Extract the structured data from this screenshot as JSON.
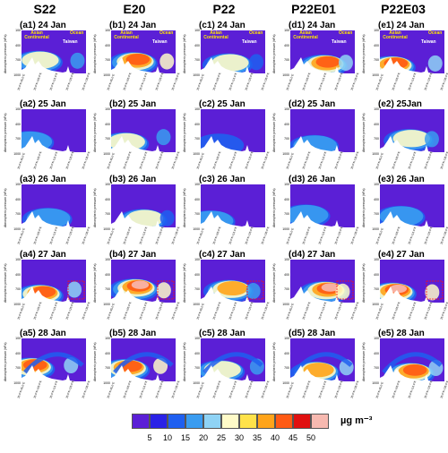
{
  "chart_data": {
    "type": "heatmap",
    "columns": [
      "S22",
      "E20",
      "P22",
      "P22E01",
      "P22E03"
    ],
    "column_letters": [
      "a",
      "b",
      "c",
      "d",
      "e"
    ],
    "rows": [
      {
        "index": 1,
        "date": "24 Jan"
      },
      {
        "index": 2,
        "date": "25 Jan"
      },
      {
        "index": 3,
        "date": "26 Jan"
      },
      {
        "index": 4,
        "date": "27 Jan"
      },
      {
        "index": 5,
        "date": "28 Jan"
      }
    ],
    "panel_titles": [
      [
        "(a1) 24 Jan",
        "(b1) 24 Jan",
        "(c1) 24 Jan",
        "(d1) 24 Jan",
        "(e1) 24 Jan"
      ],
      [
        "(a2) 25 Jan",
        "(b2) 25 Jan",
        "(c2) 25 Jan",
        "(d2) 25 Jan",
        "(e2) 25Jan"
      ],
      [
        "(a3) 26 Jan",
        "(b3) 26 Jan",
        "(c3) 26 Jan",
        "(d3) 26 Jan",
        "(e3) 26 Jan"
      ],
      [
        "(a4) 27 Jan",
        "(b4) 27 Jan",
        "(c4) 27 Jan",
        "(d4) 27 Jan",
        "(e4) 27 Jan"
      ],
      [
        "(a5) 28 Jan",
        "(b5) 28 Jan",
        "(c5) 28 Jan",
        "(d5) 28 Jan",
        "(e5) 28 Jan"
      ]
    ],
    "ylabel": "Atmospheric pressure (hPa)",
    "yticks": [
      100,
      200,
      300,
      400,
      500,
      600,
      700,
      800,
      900,
      1000
    ],
    "ylim": [
      1000,
      100
    ],
    "xticks": [
      "25.0°N 95.0°E",
      "25.0°N 105.0°E",
      "25.0°N 115.0°E",
      "25.0°N 125.0°E",
      "25.0°N 135.0°E"
    ],
    "annotations": {
      "continental": "Asian Continental",
      "ocean": "Ocean",
      "taiwan": "Taiwan"
    },
    "colorbar": {
      "ticks": [
        5,
        10,
        15,
        20,
        25,
        30,
        35,
        40,
        45,
        50
      ],
      "colors": [
        "#5b1fd6",
        "#2a22e6",
        "#1f5ff0",
        "#3a9cf0",
        "#8fd3f5",
        "#fffbc8",
        "#ffe24a",
        "#ffa41a",
        "#ff5a14",
        "#e01010",
        "#f7b9b0"
      ],
      "unit": "µg m⁻³"
    },
    "intensity_by_panel": [
      [
        0.55,
        0.85,
        0.45,
        0.8,
        0.75
      ],
      [
        0.3,
        0.55,
        0.25,
        0.4,
        0.5
      ],
      [
        0.35,
        0.45,
        0.3,
        0.35,
        0.4
      ],
      [
        0.8,
        0.95,
        0.6,
        0.9,
        0.9
      ],
      [
        0.75,
        0.85,
        0.5,
        0.7,
        0.8
      ]
    ]
  }
}
